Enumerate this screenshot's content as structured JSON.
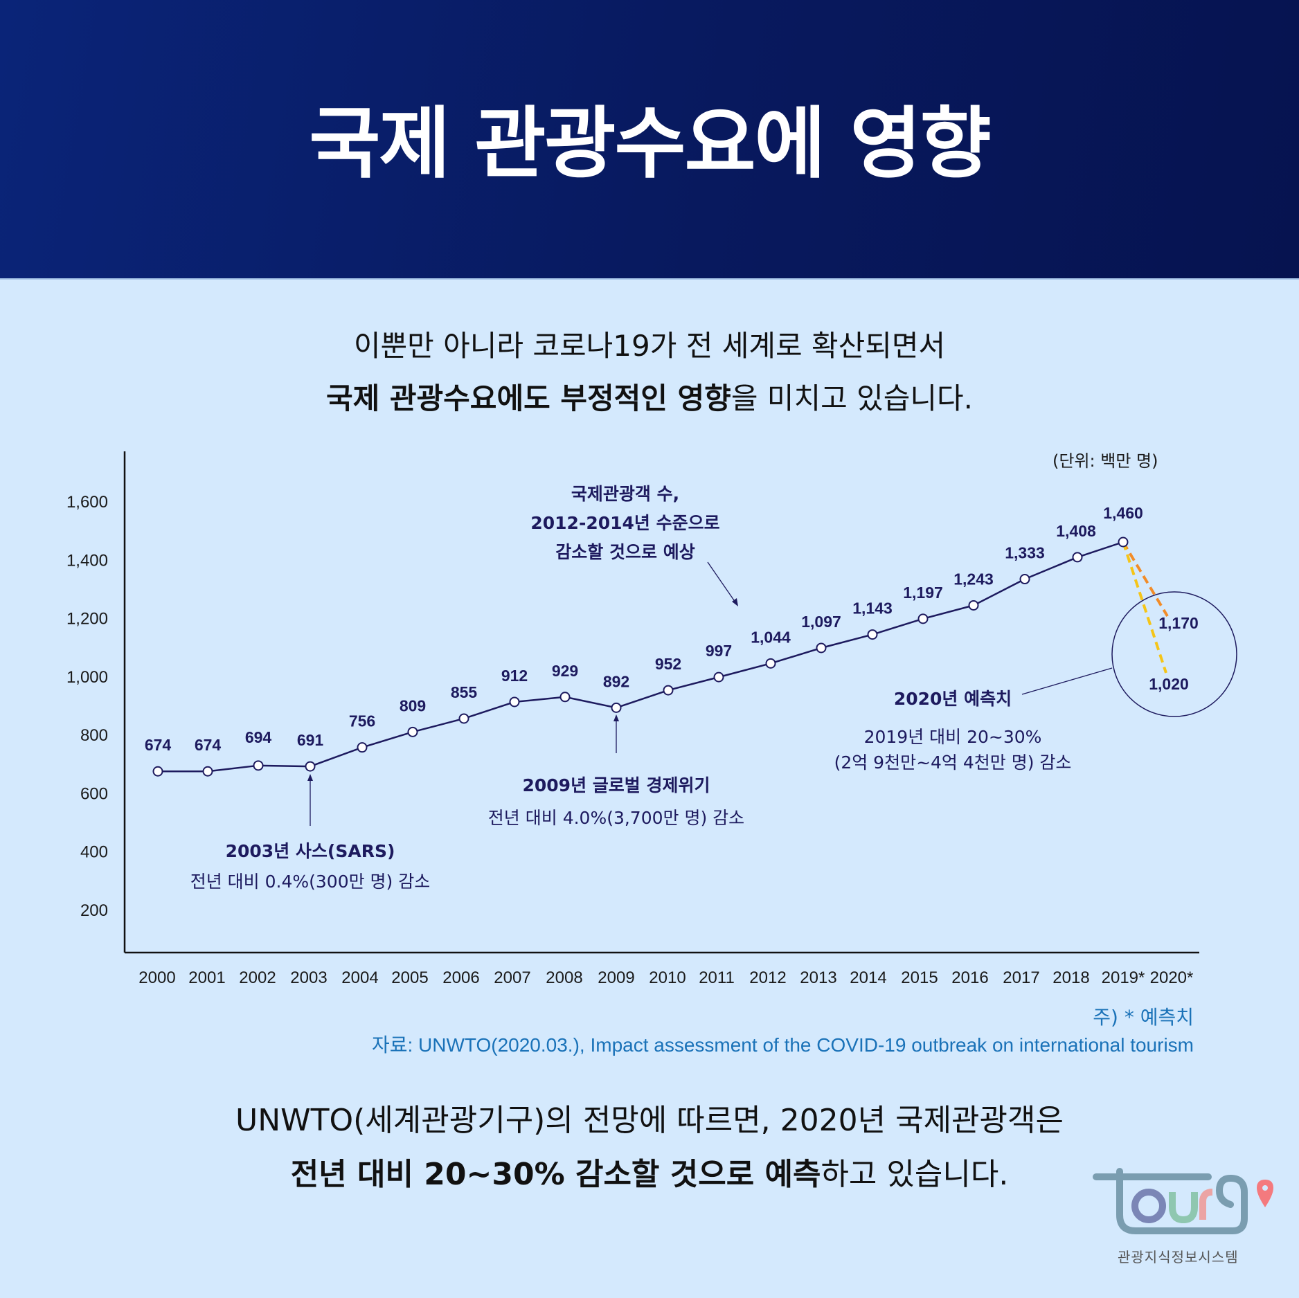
{
  "header": {
    "title": "국제 관광수요에 영향"
  },
  "intro": {
    "line1": "이뿐만 아니라 코로나19가 전 세계로 확산되면서",
    "line2_bold": "국제 관광수요에도 부정적인 영향",
    "line2_rest": "을 미치고 있습니다."
  },
  "unit_label": "(단위: 백만 명)",
  "annotations": {
    "sars": {
      "title": "2003년 사스(SARS)",
      "sub": "전년 대비 0.4%(300만 명) 감소"
    },
    "crisis": {
      "title": "2009년 글로벌 경제위기",
      "sub": "전년 대비 4.0%(3,700만 명) 감소"
    },
    "forecast_top": {
      "line1": "국제관광객 수,",
      "line2": "2012-2014년 수준으로",
      "line3": "감소할 것으로 예상"
    },
    "forecast_2020": {
      "title": "2020년 예측치",
      "sub1": "2019년 대비 20~30%",
      "sub2": "(2억 9천만~4억 4천만 명) 감소"
    }
  },
  "footnote": "주) * 예측치",
  "source": "자료: UNWTO(2020.03.), Impact assessment of the COVID-19 outbreak on international tourism",
  "outro": {
    "line1": "UNWTO(세계관광기구)의 전망에 따르면, 2020년 국제관광객은",
    "line2_bold": "전년 대비 20~30% 감소할 것으로 예측",
    "line2_rest": "하고 있습니다."
  },
  "logo": {
    "text": "tour9",
    "caption": "관광지식정보시스템"
  },
  "colors": {
    "header_bg": "#08195e",
    "page_bg": "#d4e9fd",
    "line": "#1d1a5e",
    "forecast_high": "#f28c28",
    "forecast_low": "#f5c518",
    "source_text": "#1a72b8"
  },
  "chart_data": {
    "type": "line",
    "title": "국제관광객 수",
    "xlabel": "",
    "ylabel": "(단위: 백만 명)",
    "ylim": [
      200,
      1600
    ],
    "yticks": [
      "1,600",
      "1,400",
      "1,200",
      "1,000",
      "800",
      "600",
      "400",
      "200"
    ],
    "categories": [
      "2000",
      "2001",
      "2002",
      "2003",
      "2004",
      "2005",
      "2006",
      "2007",
      "2008",
      "2009",
      "2010",
      "2011",
      "2012",
      "2013",
      "2014",
      "2015",
      "2016",
      "2017",
      "2018",
      "2019*",
      "2020*"
    ],
    "series": [
      {
        "name": "국제관광객 수",
        "values": [
          674,
          674,
          694,
          691,
          756,
          809,
          855,
          912,
          929,
          892,
          952,
          997,
          1044,
          1097,
          1143,
          1197,
          1243,
          1333,
          1408,
          1460,
          null
        ],
        "labels": [
          "674",
          "674",
          "694",
          "691",
          "756",
          "809",
          "855",
          "912",
          "929",
          "892",
          "952",
          "997",
          "1,044",
          "1,097",
          "1,143",
          "1,197",
          "1,243",
          "1,333",
          "1,408",
          "1,460",
          ""
        ]
      },
      {
        "name": "2020 예측 (상한)",
        "values": [
          null,
          null,
          null,
          null,
          null,
          null,
          null,
          null,
          null,
          null,
          null,
          null,
          null,
          null,
          null,
          null,
          null,
          null,
          null,
          1460,
          1170
        ],
        "label": "1,170",
        "style": "dashed"
      },
      {
        "name": "2020 예측 (하한)",
        "values": [
          null,
          null,
          null,
          null,
          null,
          null,
          null,
          null,
          null,
          null,
          null,
          null,
          null,
          null,
          null,
          null,
          null,
          null,
          null,
          1460,
          1020
        ],
        "label": "1,020",
        "style": "dashed"
      }
    ],
    "grid": false,
    "legend": "none",
    "annotations": [
      "2003년 사스(SARS) 전년 대비 0.4%(300만 명) 감소",
      "2009년 글로벌 경제위기 전년 대비 4.0%(3,700만 명) 감소",
      "국제관광객 수, 2012-2014년 수준으로 감소할 것으로 예상",
      "2020년 예측치 2019년 대비 20~30% (2억 9천만~4억 4천만 명) 감소"
    ]
  }
}
